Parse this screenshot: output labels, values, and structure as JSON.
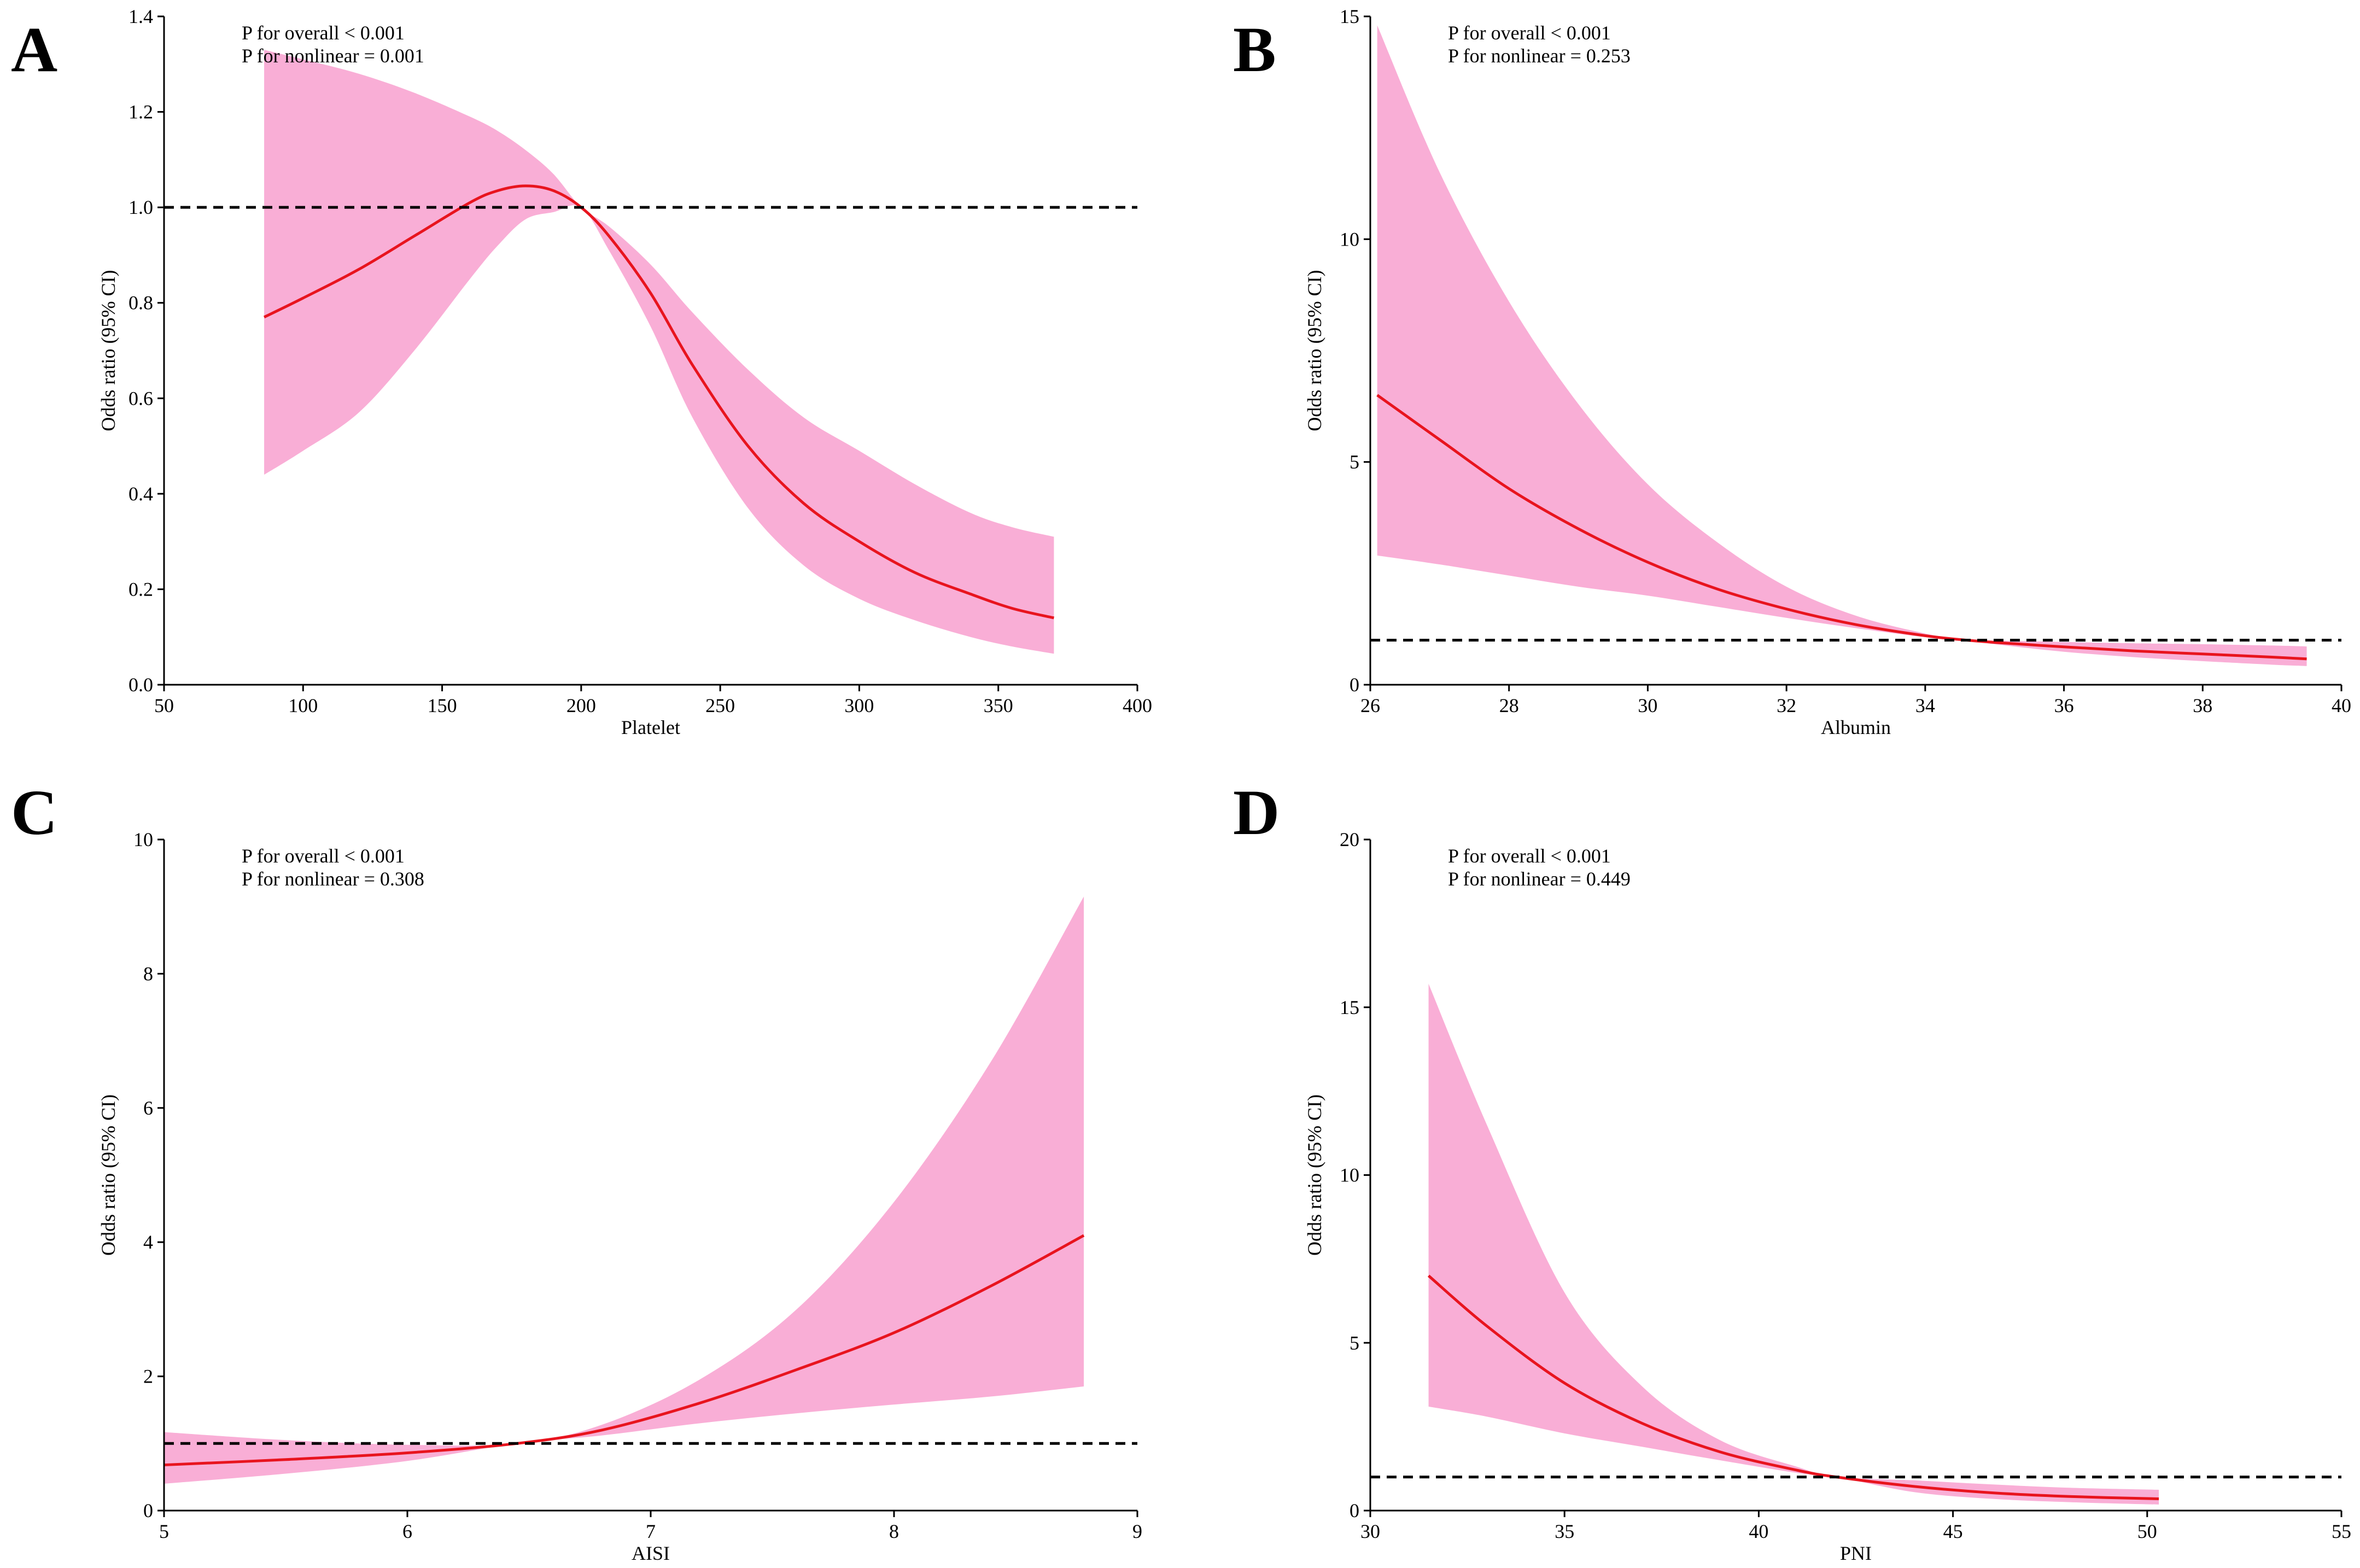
{
  "chart_data": [
    {
      "panel": "A",
      "type": "line",
      "xlabel": "Platelet",
      "ylabel": "Odds ratio (95% CI)",
      "xlim": [
        50,
        400
      ],
      "ylim": [
        0,
        1.4
      ],
      "xticks": [
        50,
        100,
        150,
        200,
        250,
        300,
        350,
        400
      ],
      "yticks": [
        0.0,
        0.2,
        0.4,
        0.6,
        0.8,
        1.0,
        1.2,
        1.4
      ],
      "ytick_labels": [
        "0.0",
        "0.2",
        "0.4",
        "0.6",
        "0.8",
        "1.0",
        "1.2",
        "1.4"
      ],
      "xtick_labels": [
        "50",
        "100",
        "150",
        "200",
        "250",
        "300",
        "350",
        "400"
      ],
      "reference_line": 1.0,
      "annotations": [
        "P for overall < 0.001",
        "P for nonlinear = 0.001"
      ],
      "series": [
        {
          "name": "Odds ratio",
          "x": [
            86,
            100,
            120,
            140,
            160,
            170,
            180,
            190,
            200,
            210,
            225,
            240,
            260,
            280,
            300,
            320,
            340,
            355,
            370
          ],
          "y": [
            0.77,
            0.81,
            0.87,
            0.94,
            1.01,
            1.035,
            1.045,
            1.035,
            1.0,
            0.94,
            0.82,
            0.67,
            0.5,
            0.38,
            0.3,
            0.235,
            0.19,
            0.16,
            0.14
          ],
          "lower": [
            0.44,
            0.49,
            0.57,
            0.7,
            0.85,
            0.92,
            0.975,
            0.99,
            1.0,
            0.91,
            0.75,
            0.56,
            0.37,
            0.25,
            0.18,
            0.135,
            0.1,
            0.08,
            0.065
          ],
          "upper": [
            1.33,
            1.31,
            1.28,
            1.24,
            1.19,
            1.16,
            1.12,
            1.07,
            1.0,
            0.96,
            0.88,
            0.78,
            0.66,
            0.56,
            0.49,
            0.42,
            0.36,
            0.33,
            0.31
          ]
        }
      ]
    },
    {
      "panel": "B",
      "type": "line",
      "xlabel": "Albumin",
      "ylabel": "Odds ratio (95% CI)",
      "xlim": [
        26,
        40
      ],
      "ylim": [
        0,
        15
      ],
      "xticks": [
        26,
        28,
        30,
        32,
        34,
        36,
        38,
        40
      ],
      "yticks": [
        0,
        5,
        10,
        15
      ],
      "ytick_labels": [
        "0",
        "5",
        "10",
        "15"
      ],
      "xtick_labels": [
        "26",
        "28",
        "30",
        "32",
        "34",
        "36",
        "38",
        "40"
      ],
      "reference_line": 1.0,
      "annotations": [
        "P for overall < 0.001",
        "P for nonlinear = 0.253"
      ],
      "series": [
        {
          "name": "Odds ratio",
          "x": [
            26.1,
            27,
            28,
            29,
            30,
            31,
            32,
            33,
            34,
            34.6,
            35,
            36,
            37,
            38,
            39,
            39.5
          ],
          "y": [
            6.5,
            5.5,
            4.4,
            3.5,
            2.75,
            2.15,
            1.7,
            1.35,
            1.1,
            1.0,
            0.95,
            0.85,
            0.76,
            0.69,
            0.62,
            0.58
          ],
          "lower": [
            2.9,
            2.7,
            2.45,
            2.2,
            2.0,
            1.75,
            1.5,
            1.27,
            1.07,
            1.0,
            0.91,
            0.74,
            0.62,
            0.53,
            0.45,
            0.42
          ],
          "upper": [
            14.8,
            11.5,
            8.6,
            6.3,
            4.5,
            3.2,
            2.2,
            1.55,
            1.15,
            1.0,
            0.99,
            0.96,
            0.93,
            0.91,
            0.88,
            0.86
          ]
        }
      ]
    },
    {
      "panel": "C",
      "type": "line",
      "xlabel": "AISI",
      "ylabel": "Odds ratio (95% CI)",
      "xlim": [
        5,
        9
      ],
      "ylim": [
        0,
        10
      ],
      "xticks": [
        5,
        6,
        7,
        8,
        9
      ],
      "yticks": [
        0,
        2,
        4,
        6,
        8,
        10
      ],
      "ytick_labels": [
        "0",
        "2",
        "4",
        "6",
        "8",
        "10"
      ],
      "xtick_labels": [
        "5",
        "6",
        "7",
        "8",
        "9"
      ],
      "reference_line": 1.0,
      "annotations": [
        "P for overall < 0.001",
        "P for nonlinear = 0.308"
      ],
      "series": [
        {
          "name": "Odds ratio",
          "x": [
            5.0,
            5.5,
            6.0,
            6.45,
            6.8,
            7.2,
            7.6,
            8.0,
            8.4,
            8.78
          ],
          "y": [
            0.68,
            0.76,
            0.86,
            1.0,
            1.2,
            1.6,
            2.1,
            2.65,
            3.35,
            4.1
          ],
          "lower": [
            0.4,
            0.55,
            0.74,
            1.0,
            1.12,
            1.3,
            1.45,
            1.58,
            1.7,
            1.85
          ],
          "upper": [
            1.17,
            1.05,
            0.98,
            1.0,
            1.28,
            1.95,
            3.0,
            4.6,
            6.7,
            9.15
          ]
        }
      ]
    },
    {
      "panel": "D",
      "type": "line",
      "xlabel": "PNI",
      "ylabel": "Odds ratio (95% CI)",
      "xlim": [
        30,
        55
      ],
      "ylim": [
        0,
        20
      ],
      "xticks": [
        30,
        35,
        40,
        45,
        50,
        55
      ],
      "yticks": [
        0,
        5,
        10,
        15,
        20
      ],
      "ytick_labels": [
        "0",
        "5",
        "10",
        "15",
        "20"
      ],
      "xtick_labels": [
        "30",
        "35",
        "40",
        "45",
        "50",
        "55"
      ],
      "reference_line": 1.0,
      "annotations": [
        "P for overall < 0.001",
        "P for nonlinear = 0.449"
      ],
      "series": [
        {
          "name": "Odds ratio",
          "x": [
            31.5,
            33,
            35,
            37,
            39,
            41,
            42,
            44,
            46,
            48,
            50.3
          ],
          "y": [
            7.0,
            5.5,
            3.8,
            2.6,
            1.75,
            1.2,
            1.0,
            0.72,
            0.53,
            0.42,
            0.35
          ],
          "lower": [
            3.1,
            2.8,
            2.3,
            1.9,
            1.5,
            1.12,
            1.0,
            0.55,
            0.35,
            0.25,
            0.18
          ],
          "upper": [
            15.7,
            11.5,
            6.5,
            3.7,
            2.1,
            1.3,
            1.0,
            0.9,
            0.78,
            0.68,
            0.62
          ]
        }
      ]
    }
  ],
  "colors": {
    "line": "#e8141e",
    "band": "#f9aed6",
    "reference": "#000000",
    "axis": "#000000"
  }
}
